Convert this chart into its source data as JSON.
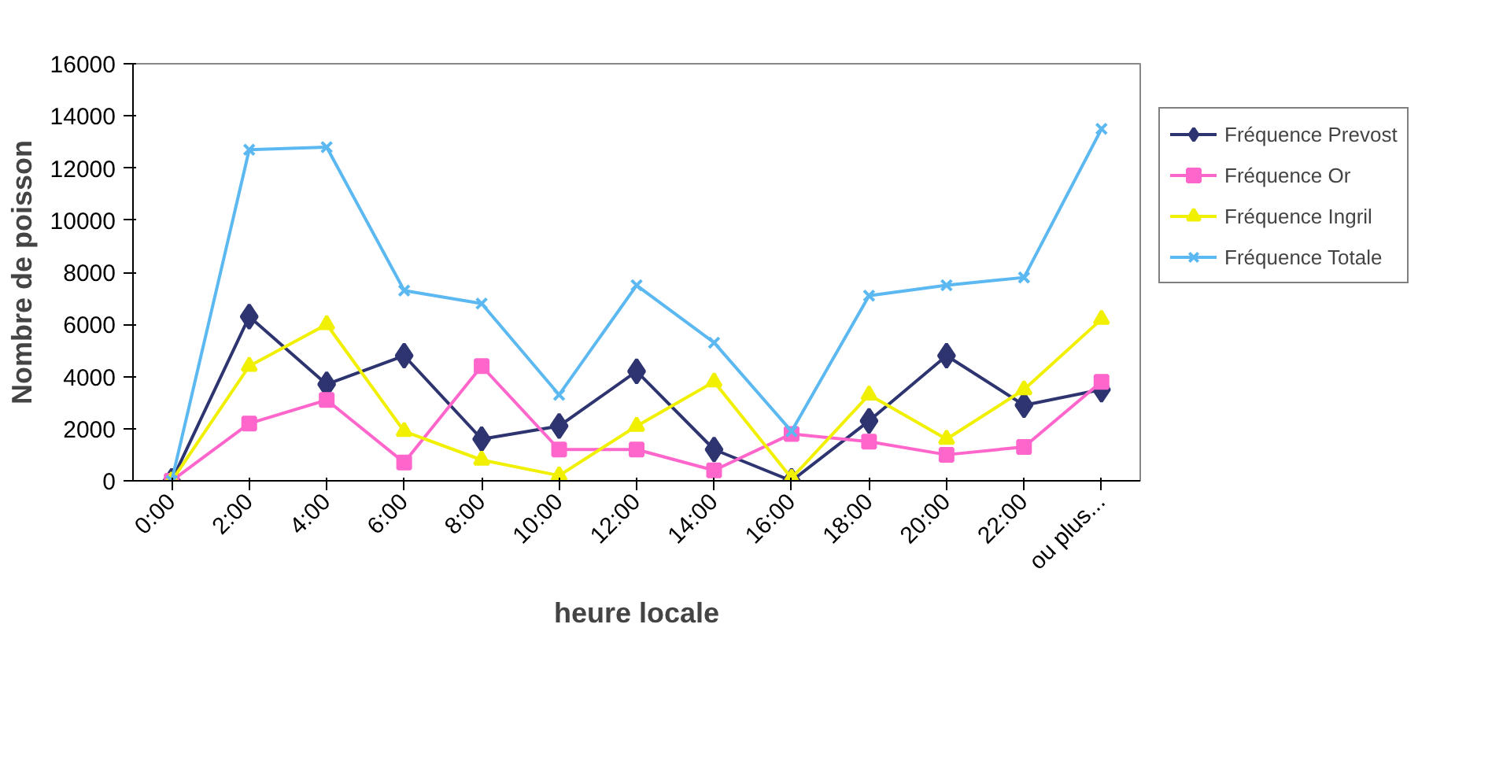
{
  "chart_data": {
    "type": "line",
    "xlabel": "heure locale",
    "ylabel": "Nombre de poisson",
    "categories": [
      "0:00",
      "2:00",
      "4:00",
      "6:00",
      "8:00",
      "10:00",
      "12:00",
      "14:00",
      "16:00",
      "18:00",
      "20:00",
      "22:00",
      "ou plus..."
    ],
    "series": [
      {
        "name": "Fréquence Prevost",
        "color": "#2e3470",
        "marker": "diamond",
        "values": [
          0,
          6300,
          3700,
          4800,
          1600,
          2100,
          4200,
          1200,
          0,
          2300,
          4800,
          2900,
          3500
        ]
      },
      {
        "name": "Fréquence Or",
        "color": "#ff66cc",
        "marker": "square",
        "values": [
          0,
          2200,
          3100,
          700,
          4400,
          1200,
          1200,
          400,
          1800,
          1500,
          1000,
          1300,
          3800
        ]
      },
      {
        "name": "Fréquence Ingril",
        "color": "#f0f000",
        "marker": "triangle",
        "values": [
          0,
          4400,
          6000,
          1900,
          800,
          200,
          2100,
          3800,
          100,
          3300,
          1600,
          3500,
          6200
        ]
      },
      {
        "name": "Fréquence Totale",
        "color": "#5bb8f0",
        "marker": "cross",
        "values": [
          0,
          12700,
          12800,
          7300,
          6800,
          3300,
          7500,
          5300,
          1900,
          7100,
          7500,
          7800,
          13500
        ]
      }
    ],
    "ylim": [
      0,
      16000
    ],
    "yticks": [
      0,
      2000,
      4000,
      6000,
      8000,
      10000,
      12000,
      14000,
      16000
    ],
    "grid": false,
    "legend": "right",
    "line_style": "solid"
  }
}
